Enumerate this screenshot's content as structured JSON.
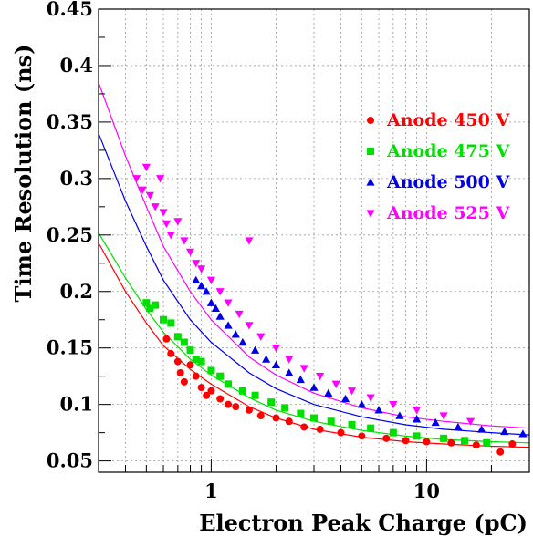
{
  "chart_data": {
    "type": "scatter",
    "xlabel": "Electron Peak Charge (pC)",
    "ylabel": "Time Resolution (ns)",
    "x_scale": "log",
    "xlim": [
      0.3,
      30
    ],
    "ylim": [
      0.04,
      0.45
    ],
    "x_ticks": [
      {
        "value": 1,
        "label": "1"
      },
      {
        "value": 10,
        "label": "10"
      }
    ],
    "y_ticks": [
      {
        "value": 0.05,
        "label": "0.05"
      },
      {
        "value": 0.1,
        "label": "0.1"
      },
      {
        "value": 0.15,
        "label": "0.15"
      },
      {
        "value": 0.2,
        "label": "0.2"
      },
      {
        "value": 0.25,
        "label": "0.25"
      },
      {
        "value": 0.3,
        "label": "0.3"
      },
      {
        "value": 0.35,
        "label": "0.35"
      },
      {
        "value": 0.4,
        "label": "0.4"
      },
      {
        "value": 0.45,
        "label": "0.45"
      }
    ],
    "grid": true,
    "legend_position": "right",
    "series": [
      {
        "name": "Anode 450 V",
        "color": "#ff0000",
        "marker": "circle",
        "fit_curve": {
          "x": [
            0.3,
            0.4,
            0.5,
            0.6,
            0.8,
            1,
            1.5,
            2,
            3,
            5,
            8,
            12,
            20,
            30
          ],
          "y": [
            0.243,
            0.2,
            0.172,
            0.152,
            0.131,
            0.118,
            0.098,
            0.088,
            0.078,
            0.071,
            0.067,
            0.065,
            0.063,
            0.062
          ]
        },
        "points": [
          {
            "x": 0.62,
            "y": 0.158
          },
          {
            "x": 0.65,
            "y": 0.145
          },
          {
            "x": 0.7,
            "y": 0.138
          },
          {
            "x": 0.72,
            "y": 0.128
          },
          {
            "x": 0.75,
            "y": 0.12
          },
          {
            "x": 0.8,
            "y": 0.135
          },
          {
            "x": 0.85,
            "y": 0.125
          },
          {
            "x": 0.9,
            "y": 0.115
          },
          {
            "x": 0.95,
            "y": 0.108
          },
          {
            "x": 1.0,
            "y": 0.112
          },
          {
            "x": 1.1,
            "y": 0.105
          },
          {
            "x": 1.2,
            "y": 0.1
          },
          {
            "x": 1.3,
            "y": 0.098
          },
          {
            "x": 1.5,
            "y": 0.095
          },
          {
            "x": 1.7,
            "y": 0.09
          },
          {
            "x": 2.0,
            "y": 0.088
          },
          {
            "x": 2.3,
            "y": 0.085
          },
          {
            "x": 2.7,
            "y": 0.08
          },
          {
            "x": 3.2,
            "y": 0.078
          },
          {
            "x": 4.0,
            "y": 0.075
          },
          {
            "x": 5.0,
            "y": 0.072
          },
          {
            "x": 6.5,
            "y": 0.07
          },
          {
            "x": 8.0,
            "y": 0.068
          },
          {
            "x": 10.0,
            "y": 0.067
          },
          {
            "x": 13.0,
            "y": 0.066
          },
          {
            "x": 17.0,
            "y": 0.064
          },
          {
            "x": 22.0,
            "y": 0.058
          },
          {
            "x": 25.0,
            "y": 0.065
          }
        ]
      },
      {
        "name": "Anode 475 V",
        "color": "#00e000",
        "marker": "square",
        "fit_curve": {
          "x": [
            0.3,
            0.4,
            0.5,
            0.6,
            0.8,
            1,
            1.5,
            2,
            3,
            5,
            8,
            12,
            20,
            30
          ],
          "y": [
            0.252,
            0.212,
            0.184,
            0.164,
            0.14,
            0.126,
            0.106,
            0.095,
            0.085,
            0.077,
            0.072,
            0.069,
            0.067,
            0.066
          ]
        },
        "points": [
          {
            "x": 0.5,
            "y": 0.19
          },
          {
            "x": 0.52,
            "y": 0.185
          },
          {
            "x": 0.55,
            "y": 0.188
          },
          {
            "x": 0.6,
            "y": 0.175
          },
          {
            "x": 0.65,
            "y": 0.172
          },
          {
            "x": 0.7,
            "y": 0.16
          },
          {
            "x": 0.75,
            "y": 0.155
          },
          {
            "x": 0.8,
            "y": 0.148
          },
          {
            "x": 0.85,
            "y": 0.14
          },
          {
            "x": 0.9,
            "y": 0.138
          },
          {
            "x": 1.0,
            "y": 0.13
          },
          {
            "x": 1.1,
            "y": 0.125
          },
          {
            "x": 1.2,
            "y": 0.118
          },
          {
            "x": 1.4,
            "y": 0.112
          },
          {
            "x": 1.6,
            "y": 0.108
          },
          {
            "x": 1.9,
            "y": 0.102
          },
          {
            "x": 2.2,
            "y": 0.097
          },
          {
            "x": 2.6,
            "y": 0.092
          },
          {
            "x": 3.0,
            "y": 0.088
          },
          {
            "x": 3.6,
            "y": 0.085
          },
          {
            "x": 4.5,
            "y": 0.082
          },
          {
            "x": 5.5,
            "y": 0.079
          },
          {
            "x": 7.0,
            "y": 0.075
          },
          {
            "x": 9.0,
            "y": 0.072
          },
          {
            "x": 12.0,
            "y": 0.07
          },
          {
            "x": 15.0,
            "y": 0.068
          },
          {
            "x": 19.0,
            "y": 0.066
          }
        ]
      },
      {
        "name": "Anode 500 V",
        "color": "#0000e6",
        "marker": "triangle-up",
        "fit_curve": {
          "x": [
            0.3,
            0.4,
            0.5,
            0.6,
            0.8,
            1,
            1.5,
            2,
            3,
            5,
            8,
            12,
            20,
            30
          ],
          "y": [
            0.34,
            0.28,
            0.24,
            0.21,
            0.175,
            0.155,
            0.128,
            0.114,
            0.1,
            0.089,
            0.082,
            0.078,
            0.075,
            0.073
          ]
        },
        "points": [
          {
            "x": 0.85,
            "y": 0.21
          },
          {
            "x": 0.9,
            "y": 0.205
          },
          {
            "x": 0.95,
            "y": 0.2
          },
          {
            "x": 1.0,
            "y": 0.19
          },
          {
            "x": 1.05,
            "y": 0.185
          },
          {
            "x": 1.1,
            "y": 0.178
          },
          {
            "x": 1.2,
            "y": 0.17
          },
          {
            "x": 1.3,
            "y": 0.162
          },
          {
            "x": 1.4,
            "y": 0.155
          },
          {
            "x": 1.6,
            "y": 0.148
          },
          {
            "x": 1.8,
            "y": 0.14
          },
          {
            "x": 2.0,
            "y": 0.135
          },
          {
            "x": 2.3,
            "y": 0.128
          },
          {
            "x": 2.6,
            "y": 0.122
          },
          {
            "x": 3.0,
            "y": 0.115
          },
          {
            "x": 3.5,
            "y": 0.11
          },
          {
            "x": 4.2,
            "y": 0.105
          },
          {
            "x": 5.0,
            "y": 0.1
          },
          {
            "x": 6.0,
            "y": 0.095
          },
          {
            "x": 7.5,
            "y": 0.09
          },
          {
            "x": 9.0,
            "y": 0.087
          },
          {
            "x": 11.0,
            "y": 0.084
          },
          {
            "x": 14.0,
            "y": 0.08
          },
          {
            "x": 18.0,
            "y": 0.078
          },
          {
            "x": 23.0,
            "y": 0.076
          },
          {
            "x": 28.0,
            "y": 0.074
          }
        ]
      },
      {
        "name": "Anode 525 V",
        "color": "#ff00ff",
        "marker": "triangle-down",
        "fit_curve": {
          "x": [
            0.3,
            0.4,
            0.5,
            0.6,
            0.8,
            1,
            1.5,
            2,
            3,
            5,
            8,
            12,
            20,
            30
          ],
          "y": [
            0.385,
            0.32,
            0.275,
            0.24,
            0.2,
            0.175,
            0.142,
            0.126,
            0.11,
            0.097,
            0.089,
            0.085,
            0.081,
            0.079
          ]
        },
        "points": [
          {
            "x": 0.45,
            "y": 0.3
          },
          {
            "x": 0.48,
            "y": 0.29
          },
          {
            "x": 0.5,
            "y": 0.31
          },
          {
            "x": 0.52,
            "y": 0.285
          },
          {
            "x": 0.55,
            "y": 0.275
          },
          {
            "x": 0.58,
            "y": 0.3
          },
          {
            "x": 0.6,
            "y": 0.27
          },
          {
            "x": 0.62,
            "y": 0.26
          },
          {
            "x": 0.65,
            "y": 0.25
          },
          {
            "x": 0.7,
            "y": 0.262
          },
          {
            "x": 0.75,
            "y": 0.245
          },
          {
            "x": 0.8,
            "y": 0.235
          },
          {
            "x": 0.85,
            "y": 0.225
          },
          {
            "x": 0.9,
            "y": 0.22
          },
          {
            "x": 1.0,
            "y": 0.21
          },
          {
            "x": 1.1,
            "y": 0.2
          },
          {
            "x": 1.2,
            "y": 0.19
          },
          {
            "x": 1.35,
            "y": 0.18
          },
          {
            "x": 1.5,
            "y": 0.17
          },
          {
            "x": 1.5,
            "y": 0.245
          },
          {
            "x": 1.7,
            "y": 0.16
          },
          {
            "x": 2.0,
            "y": 0.15
          },
          {
            "x": 2.3,
            "y": 0.14
          },
          {
            "x": 2.7,
            "y": 0.132
          },
          {
            "x": 3.2,
            "y": 0.125
          },
          {
            "x": 3.8,
            "y": 0.118
          },
          {
            "x": 4.5,
            "y": 0.112
          },
          {
            "x": 5.5,
            "y": 0.106
          },
          {
            "x": 7.0,
            "y": 0.1
          },
          {
            "x": 9.0,
            "y": 0.095
          },
          {
            "x": 12.0,
            "y": 0.09
          },
          {
            "x": 16.0,
            "y": 0.085
          }
        ]
      }
    ]
  }
}
